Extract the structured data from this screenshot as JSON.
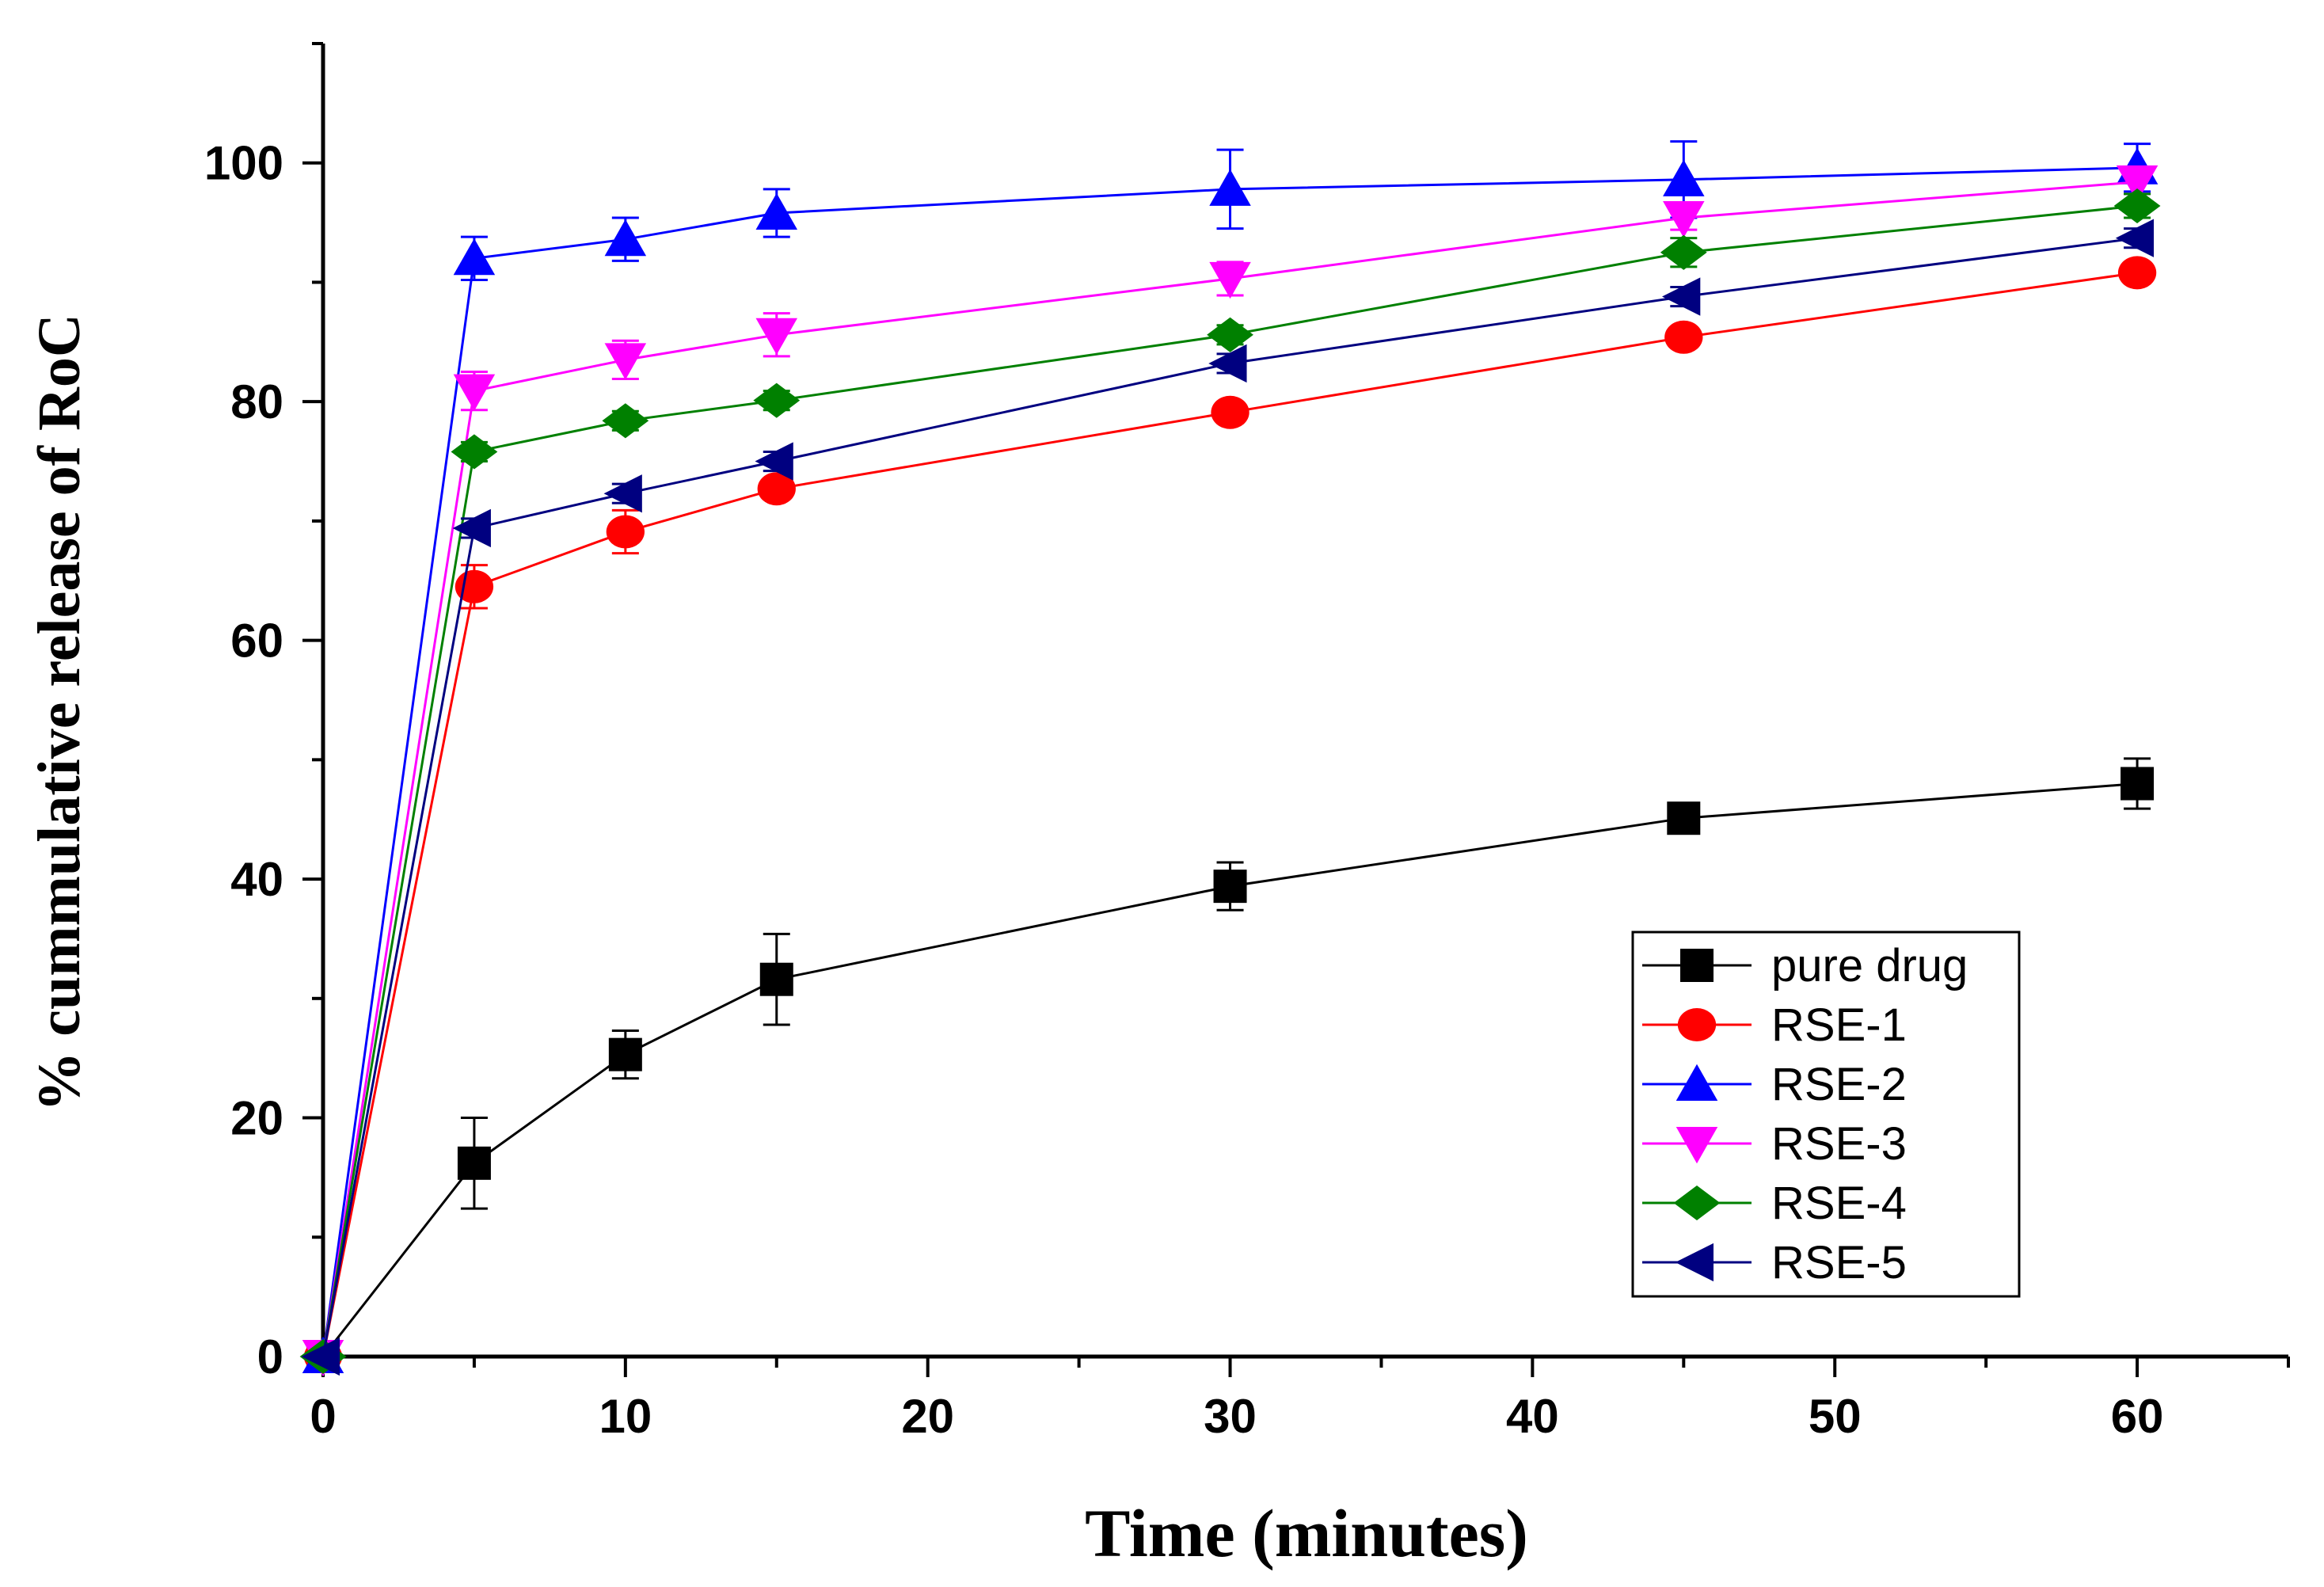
{
  "chart_data": {
    "type": "line",
    "title": "",
    "xlabel": "Time (minutes)",
    "ylabel": "% cummulative release of RoC",
    "xlim": [
      0,
      65
    ],
    "ylim": [
      0,
      110
    ],
    "xticks": [
      0,
      10,
      20,
      30,
      40,
      50,
      60
    ],
    "yticks": [
      0,
      20,
      40,
      60,
      80,
      100
    ],
    "x": [
      0,
      5,
      10,
      15,
      30,
      45,
      60
    ],
    "legend_position": "bottom-right",
    "series": [
      {
        "name": "pure drug",
        "color": "#000000",
        "marker": "square",
        "values": [
          0,
          16.2,
          25.3,
          31.6,
          39.4,
          45.1,
          48.0
        ],
        "errors": [
          0,
          3.8,
          2.0,
          3.8,
          2.0,
          0.8,
          2.1
        ]
      },
      {
        "name": "RSE-1",
        "color": "#ff0000",
        "marker": "circle",
        "values": [
          0,
          64.5,
          69.1,
          72.7,
          79.1,
          85.4,
          90.8
        ],
        "errors": [
          0,
          1.8,
          1.8,
          0.8,
          0.6,
          0.6,
          0.6
        ]
      },
      {
        "name": "RSE-2",
        "color": "#0000ff",
        "marker": "triangle-up",
        "values": [
          0,
          92.0,
          93.6,
          95.8,
          97.8,
          98.6,
          99.6
        ],
        "errors": [
          0,
          1.8,
          1.8,
          2.0,
          3.3,
          3.2,
          2.0
        ]
      },
      {
        "name": "RSE-3",
        "color": "#ff00ff",
        "marker": "triangle-down",
        "values": [
          0,
          80.9,
          83.5,
          85.6,
          90.3,
          95.4,
          98.4
        ],
        "errors": [
          0,
          1.6,
          1.6,
          1.8,
          1.4,
          1.0,
          1.0
        ]
      },
      {
        "name": "RSE-4",
        "color": "#008000",
        "marker": "diamond",
        "values": [
          0,
          75.8,
          78.4,
          80.1,
          85.6,
          92.5,
          96.4
        ],
        "errors": [
          0,
          0.8,
          0.8,
          0.8,
          0.8,
          1.2,
          1.0
        ]
      },
      {
        "name": "RSE-5",
        "color": "#000080",
        "marker": "triangle-left",
        "values": [
          0,
          69.4,
          72.3,
          75.0,
          83.2,
          88.8,
          93.7
        ],
        "errors": [
          0,
          0.8,
          0.8,
          0.8,
          0.8,
          0.8,
          0.8
        ]
      }
    ]
  }
}
